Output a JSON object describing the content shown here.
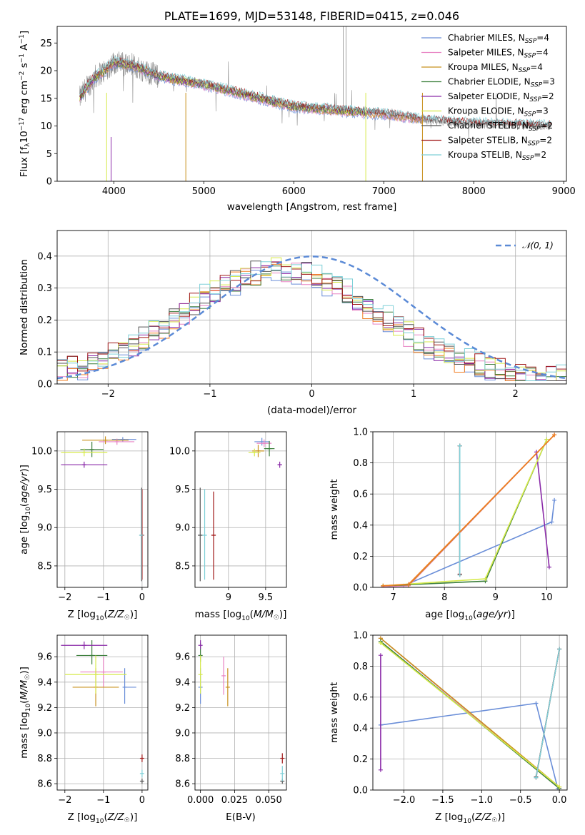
{
  "colors": {
    "Chabrier MILES": "#6a8ed8",
    "Salpeter MILES": "#e882c3",
    "Kroupa MILES": "#c8901e",
    "Chabrier ELODIE": "#3c7f3c",
    "Salpeter ELODIE": "#8a2aa8",
    "Kroupa ELODIE": "#d6ea4a",
    "Chabrier STELIB": "#555555",
    "Salpeter STELIB": "#a01818",
    "Kroupa STELIB": "#7fd0d8",
    "hist_orange": "#f07d22",
    "gaussian": "#5b8ad6",
    "spectrum_gray": "#8c8c8c"
  },
  "chart_data": [
    {
      "id": "spectrum",
      "type": "line",
      "title": "PLATE=1699, MJD=53148, FIBERID=0415, z=0.046",
      "xlabel": "wavelength [Angstrom, rest frame]",
      "ylabel": "Flux [f_λ10^-17 erg cm^-2 s^-1 A^-1]",
      "xlim": [
        3370,
        9030
      ],
      "ylim": [
        0,
        28
      ],
      "xticks": [
        4000,
        5000,
        6000,
        7000,
        8000,
        9000
      ],
      "yticks": [
        0,
        5,
        10,
        15,
        20,
        25
      ],
      "legend_position": "top-right",
      "legend": [
        {
          "model": "Chabrier MILES",
          "label": "Chabrier MILES, N",
          "sub": "SSP",
          "suffix": "=4"
        },
        {
          "model": "Salpeter MILES",
          "label": "Salpeter MILES, N",
          "sub": "SSP",
          "suffix": "=4"
        },
        {
          "model": "Kroupa MILES",
          "label": "Kroupa MILES, N",
          "sub": "SSP",
          "suffix": "=4"
        },
        {
          "model": "Chabrier ELODIE",
          "label": "Chabrier ELODIE, N",
          "sub": "SSP",
          "suffix": "=3"
        },
        {
          "model": "Salpeter ELODIE",
          "label": "Salpeter ELODIE, N",
          "sub": "SSP",
          "suffix": "=2"
        },
        {
          "model": "Kroupa ELODIE",
          "label": "Kroupa ELODIE, N",
          "sub": "SSP",
          "suffix": "=3"
        },
        {
          "model": "Chabrier STELIB",
          "label": "Chabrier STELIB, N",
          "sub": "SSP",
          "suffix": "=2"
        },
        {
          "model": "Salpeter STELIB",
          "label": "Salpeter STELIB, N",
          "sub": "SSP",
          "suffix": "=2"
        },
        {
          "model": "Kroupa STELIB",
          "label": "Kroupa STELIB, N",
          "sub": "SSP",
          "suffix": "=2"
        }
      ],
      "continuum": [
        [
          3620,
          15
        ],
        [
          3700,
          17
        ],
        [
          3800,
          19
        ],
        [
          3900,
          20
        ],
        [
          4000,
          21.5
        ],
        [
          4200,
          21
        ],
        [
          4500,
          19
        ],
        [
          5000,
          17.5
        ],
        [
          5500,
          15.5
        ],
        [
          6000,
          13.5
        ],
        [
          6500,
          12.8
        ],
        [
          7000,
          12.2
        ],
        [
          7500,
          11
        ],
        [
          8000,
          10.4
        ],
        [
          8500,
          10.2
        ],
        [
          8850,
          10
        ]
      ],
      "model_ranges": [
        [
          3620,
          7430
        ],
        [
          3620,
          7430
        ],
        [
          3620,
          7430
        ],
        [
          3620,
          6800
        ],
        [
          3620,
          6800
        ],
        [
          3620,
          6800
        ],
        [
          3620,
          8860
        ],
        [
          3620,
          8860
        ],
        [
          3620,
          8860
        ]
      ]
    },
    {
      "id": "residuals",
      "type": "histogram",
      "xlabel": "(data-model)/error",
      "ylabel": "Normed distribution",
      "xlim": [
        -2.5,
        2.5
      ],
      "ylim": [
        0,
        0.48
      ],
      "xticks": [
        -2,
        -1,
        0,
        1,
        2
      ],
      "yticks": [
        0.0,
        0.1,
        0.2,
        0.3,
        0.4
      ],
      "grid": true,
      "legend_position": "top-right",
      "legend": [
        {
          "label": "𝒩(0, 1)"
        }
      ],
      "gaussian": {
        "mean": 0,
        "sigma": 1
      },
      "bins": {
        "start": -2.5,
        "width": 0.1,
        "count": 50
      }
    },
    {
      "id": "age_vs_z",
      "type": "errorbar",
      "xlabel": "Z [log₁₀(Z/Z☉)]",
      "ylabel": "age  [log₁₀(age/yr)]",
      "xlim": [
        -2.2,
        0.15
      ],
      "ylim": [
        8.22,
        10.25
      ],
      "xticks": [
        -2,
        -1,
        0
      ],
      "yticks": [
        8.5,
        9.0,
        9.5,
        10.0
      ],
      "grid": true,
      "points": [
        {
          "model": "Chabrier MILES",
          "x": -0.5,
          "xerr": [
            0.28,
            0.35
          ],
          "y": 10.15,
          "yerr": [
            0.03,
            0.03
          ]
        },
        {
          "model": "Salpeter MILES",
          "x": -0.65,
          "xerr": [
            0.47,
            0.45
          ],
          "y": 10.12,
          "yerr": [
            0.04,
            0.04
          ]
        },
        {
          "model": "Kroupa MILES",
          "x": -0.95,
          "xerr": [
            0.6,
            0.6
          ],
          "y": 10.14,
          "yerr": [
            0.05,
            0.05
          ]
        },
        {
          "model": "Chabrier ELODIE",
          "x": -1.3,
          "xerr": [
            0.3,
            0.3
          ],
          "y": 10.02,
          "yerr": [
            0.1,
            0.1
          ]
        },
        {
          "model": "Salpeter ELODIE",
          "x": -1.5,
          "xerr": [
            0.6,
            0.6
          ],
          "y": 9.82,
          "yerr": [
            0.04,
            0.04
          ]
        },
        {
          "model": "Kroupa ELODIE",
          "x": -1.5,
          "xerr": [
            0.6,
            0.6
          ],
          "y": 9.98,
          "yerr": [
            0.05,
            0.05
          ]
        },
        {
          "model": "Chabrier STELIB",
          "x": -0.01,
          "xerr": [
            0.02,
            0.02
          ],
          "y": 8.9,
          "yerr": [
            0.6,
            0.62
          ]
        },
        {
          "model": "Salpeter STELIB",
          "x": 0.0,
          "xerr": [
            0.02,
            0.02
          ],
          "y": 8.9,
          "yerr": [
            0.58,
            0.6
          ]
        },
        {
          "model": "Kroupa STELIB",
          "x": -0.02,
          "xerr": [
            0.02,
            0.02
          ],
          "y": 8.9,
          "yerr": [
            0.58,
            0.6
          ]
        }
      ]
    },
    {
      "id": "age_vs_mass",
      "type": "errorbar",
      "xlabel": "mass [log₁₀(M/M☉)]",
      "ylabel": "",
      "xlim": [
        8.55,
        9.78
      ],
      "ylim": [
        8.22,
        10.25
      ],
      "xticks": [
        9.0,
        9.5
      ],
      "yticks": [
        8.5,
        9.0,
        9.5,
        10.0
      ],
      "grid": true,
      "points": [
        {
          "model": "Chabrier MILES",
          "x": 9.45,
          "xerr": [
            0.1,
            0.1
          ],
          "y": 10.12,
          "yerr": [
            0.05,
            0.05
          ]
        },
        {
          "model": "Salpeter MILES",
          "x": 9.48,
          "xerr": [
            0.1,
            0.1
          ],
          "y": 10.1,
          "yerr": [
            0.05,
            0.05
          ]
        },
        {
          "model": "Kroupa MILES",
          "x": 9.4,
          "xerr": [
            0.08,
            0.08
          ],
          "y": 10.0,
          "yerr": [
            0.08,
            0.08
          ]
        },
        {
          "model": "Chabrier ELODIE",
          "x": 9.55,
          "xerr": [
            0.07,
            0.07
          ],
          "y": 10.03,
          "yerr": [
            0.1,
            0.1
          ]
        },
        {
          "model": "Salpeter ELODIE",
          "x": 9.69,
          "xerr": [
            0.03,
            0.03
          ],
          "y": 9.82,
          "yerr": [
            0.04,
            0.04
          ]
        },
        {
          "model": "Kroupa ELODIE",
          "x": 9.35,
          "xerr": [
            0.08,
            0.08
          ],
          "y": 9.98,
          "yerr": [
            0.05,
            0.05
          ]
        },
        {
          "model": "Chabrier STELIB",
          "x": 8.62,
          "xerr": [
            0.03,
            0.03
          ],
          "y": 8.9,
          "yerr": [
            0.6,
            0.62
          ]
        },
        {
          "model": "Salpeter STELIB",
          "x": 8.8,
          "xerr": [
            0.03,
            0.03
          ],
          "y": 8.9,
          "yerr": [
            0.58,
            0.57
          ]
        },
        {
          "model": "Kroupa STELIB",
          "x": 8.68,
          "xerr": [
            0.03,
            0.03
          ],
          "y": 8.9,
          "yerr": [
            0.58,
            0.6
          ]
        }
      ]
    },
    {
      "id": "weight_vs_age",
      "type": "line",
      "xlabel": "age  [log₁₀(age/yr)]",
      "ylabel": "mass weight",
      "xlim": [
        6.6,
        10.4
      ],
      "ylim": [
        0.0,
        1.0
      ],
      "xticks": [
        7,
        8,
        9,
        10
      ],
      "yticks": [
        0.0,
        0.2,
        0.4,
        0.6,
        0.8,
        1.0
      ],
      "grid": true,
      "series": [
        {
          "model": "Chabrier MILES",
          "points": [
            [
              6.8,
              0.005
            ],
            [
              7.2,
              0.01
            ],
            [
              10.1,
              0.42
            ],
            [
              10.15,
              0.56
            ]
          ]
        },
        {
          "model": "Salpeter MILES",
          "points": [
            [
              6.8,
              0.005
            ],
            [
              7.3,
              0.01
            ],
            [
              10.15,
              0.98
            ]
          ]
        },
        {
          "model": "Kroupa MILES",
          "points": [
            [
              6.8,
              0.01
            ],
            [
              7.3,
              0.015
            ],
            [
              10.15,
              0.98
            ]
          ]
        },
        {
          "model": "Chabrier ELODIE",
          "points": [
            [
              6.8,
              0.01
            ],
            [
              8.8,
              0.04
            ],
            [
              10.0,
              0.95
            ]
          ]
        },
        {
          "model": "Salpeter ELODIE",
          "points": [
            [
              9.8,
              0.87
            ],
            [
              10.05,
              0.13
            ]
          ]
        },
        {
          "model": "Kroupa ELODIE",
          "points": [
            [
              6.8,
              0.01
            ],
            [
              8.8,
              0.055
            ],
            [
              10.0,
              0.95
            ]
          ]
        },
        {
          "model": "Chabrier STELIB",
          "points": [
            [
              8.3,
              0.08
            ],
            [
              8.3,
              0.91
            ]
          ]
        },
        {
          "model": "Salpeter STELIB",
          "points": [
            [
              8.3,
              0.085
            ],
            [
              8.3,
              0.91
            ]
          ]
        },
        {
          "model": "Kroupa STELIB",
          "points": [
            [
              8.3,
              0.08
            ],
            [
              8.3,
              0.91
            ]
          ]
        }
      ],
      "extra_series": [
        {
          "color_key": "hist_orange",
          "points": [
            [
              6.8,
              0.01
            ],
            [
              7.3,
              0.02
            ],
            [
              10.15,
              0.98
            ]
          ]
        }
      ]
    },
    {
      "id": "mass_vs_z",
      "type": "errorbar",
      "xlabel": "Z [log₁₀(Z/Z☉)]",
      "ylabel": "mass [log₁₀(M/M☉)]",
      "xlim": [
        -2.2,
        0.15
      ],
      "ylim": [
        8.55,
        9.77
      ],
      "xticks": [
        -2,
        -1,
        0
      ],
      "yticks": [
        8.6,
        8.8,
        9.0,
        9.2,
        9.4,
        9.6
      ],
      "grid": true,
      "points": [
        {
          "model": "Chabrier MILES",
          "x": -0.45,
          "xerr": [
            0.0,
            0.3
          ],
          "y": 9.36,
          "yerr": [
            0.13,
            0.15
          ]
        },
        {
          "model": "Salpeter MILES",
          "x": -1.0,
          "xerr": [
            0.6,
            0.5
          ],
          "y": 9.48,
          "yerr": [
            0.12,
            0.12
          ]
        },
        {
          "model": "Kroupa MILES",
          "x": -1.2,
          "xerr": [
            0.6,
            0.6
          ],
          "y": 9.36,
          "yerr": [
            0.15,
            0.15
          ]
        },
        {
          "model": "Chabrier ELODIE",
          "x": -1.3,
          "xerr": [
            0.4,
            0.4
          ],
          "y": 9.61,
          "yerr": [
            0.07,
            0.12
          ]
        },
        {
          "model": "Salpeter ELODIE",
          "x": -1.5,
          "xerr": [
            0.6,
            0.6
          ],
          "y": 9.69,
          "yerr": [
            0.03,
            0.03
          ]
        },
        {
          "model": "Kroupa ELODIE",
          "x": -1.2,
          "xerr": [
            0.8,
            0.8
          ],
          "y": 9.46,
          "yerr": [
            0.15,
            0.15
          ]
        },
        {
          "model": "Chabrier STELIB",
          "x": 0.0,
          "xerr": [
            0.02,
            0.02
          ],
          "y": 8.62,
          "yerr": [
            0.02,
            0.02
          ]
        },
        {
          "model": "Salpeter STELIB",
          "x": 0.0,
          "xerr": [
            0.02,
            0.02
          ],
          "y": 8.8,
          "yerr": [
            0.03,
            0.03
          ]
        },
        {
          "model": "Kroupa STELIB",
          "x": 0.0,
          "xerr": [
            0.02,
            0.02
          ],
          "y": 8.68,
          "yerr": [
            0.03,
            0.03
          ]
        }
      ]
    },
    {
      "id": "mass_vs_ebv",
      "type": "errorbar",
      "xlabel": "E(B-V)",
      "ylabel": "",
      "xlim": [
        -0.004,
        0.063
      ],
      "ylim": [
        8.55,
        9.77
      ],
      "xticks": [
        0.0,
        0.025,
        0.05
      ],
      "xticklabels": [
        "0.000",
        "0.025",
        "0.050"
      ],
      "yticks": [
        8.6,
        8.8,
        9.0,
        9.2,
        9.4,
        9.6
      ],
      "grid": true,
      "points": [
        {
          "model": "Chabrier MILES",
          "x": 0.0,
          "y": 9.36,
          "yerr": [
            0.13,
            0.15
          ]
        },
        {
          "model": "Salpeter MILES",
          "x": 0.017,
          "y": 9.45,
          "yerr": [
            0.15,
            0.15
          ]
        },
        {
          "model": "Kroupa MILES",
          "x": 0.02,
          "y": 9.36,
          "yerr": [
            0.15,
            0.15
          ]
        },
        {
          "model": "Chabrier ELODIE",
          "x": 0.0,
          "y": 9.61,
          "yerr": [
            0.05,
            0.1
          ]
        },
        {
          "model": "Salpeter ELODIE",
          "x": 0.0,
          "y": 9.69,
          "yerr": [
            0.03,
            0.04
          ]
        },
        {
          "model": "Kroupa ELODIE",
          "x": 0.0,
          "y": 9.46,
          "yerr": [
            0.15,
            0.15
          ]
        },
        {
          "model": "Chabrier STELIB",
          "x": 0.06,
          "y": 8.62,
          "yerr": [
            0.02,
            0.02
          ]
        },
        {
          "model": "Salpeter STELIB",
          "x": 0.06,
          "y": 8.8,
          "yerr": [
            0.04,
            0.04
          ]
        },
        {
          "model": "Kroupa STELIB",
          "x": 0.06,
          "y": 8.68,
          "yerr": [
            0.06,
            0.06
          ]
        }
      ]
    },
    {
      "id": "weight_vs_z",
      "type": "line",
      "xlabel": "Z [log₁₀(Z/Z☉)]",
      "ylabel": "mass weight",
      "xlim": [
        -2.4,
        0.1
      ],
      "ylim": [
        0.0,
        1.0
      ],
      "xticks": [
        -2.0,
        -1.5,
        -1.0,
        -0.5,
        0.0
      ],
      "xticklabels": [
        "−2.0",
        "−1.5",
        "−1.0",
        "−0.5",
        "0.0"
      ],
      "yticks": [
        0.0,
        0.2,
        0.4,
        0.6,
        0.8,
        1.0
      ],
      "grid": true,
      "series": [
        {
          "model": "Chabrier MILES",
          "points": [
            [
              -2.3,
              0.42
            ],
            [
              -0.3,
              0.56
            ],
            [
              -0.02,
              0.01
            ]
          ]
        },
        {
          "model": "Salpeter MILES",
          "points": [
            [
              -2.3,
              0.98
            ],
            [
              0.0,
              0.01
            ]
          ]
        },
        {
          "model": "Kroupa MILES",
          "points": [
            [
              -2.3,
              0.98
            ],
            [
              0.0,
              0.02
            ]
          ]
        },
        {
          "model": "Chabrier ELODIE",
          "points": [
            [
              -2.3,
              0.96
            ],
            [
              0.0,
              0.01
            ]
          ]
        },
        {
          "model": "Salpeter ELODIE",
          "points": [
            [
              -2.3,
              0.87
            ],
            [
              -2.3,
              0.13
            ]
          ]
        },
        {
          "model": "Kroupa ELODIE",
          "points": [
            [
              -2.3,
              0.95
            ],
            [
              0.0,
              0.02
            ]
          ]
        },
        {
          "model": "Chabrier STELIB",
          "points": [
            [
              -0.3,
              0.085
            ],
            [
              0.0,
              0.91
            ]
          ]
        },
        {
          "model": "Salpeter STELIB",
          "points": [
            [
              -0.3,
              0.08
            ],
            [
              0.0,
              0.91
            ]
          ]
        },
        {
          "model": "Kroupa STELIB",
          "points": [
            [
              -0.3,
              0.08
            ],
            [
              0.0,
              0.91
            ]
          ]
        }
      ]
    }
  ]
}
